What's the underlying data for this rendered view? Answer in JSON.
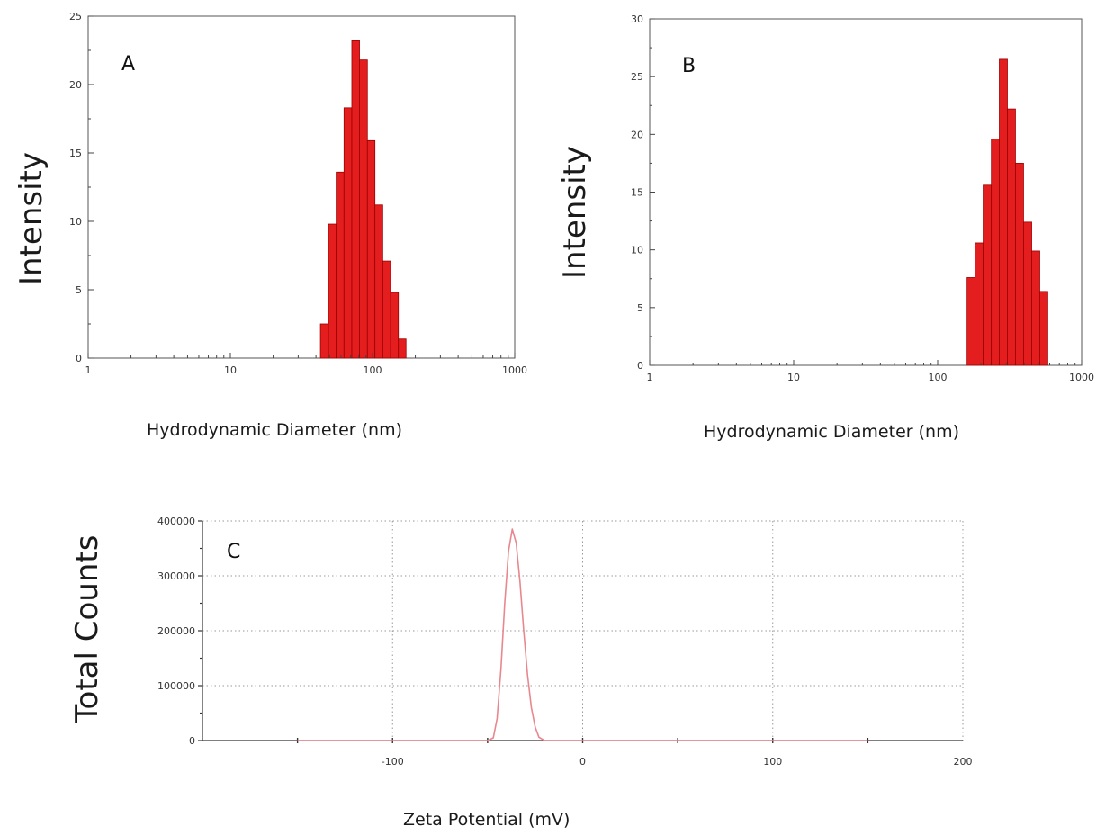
{
  "colors": {
    "bar_fill": "#e41e1e",
    "bar_edge": "#9b0000",
    "zeta_line": "#e8888e",
    "grid": "#9a9a9a"
  },
  "chart_data": [
    {
      "id": "A",
      "type": "bar",
      "panel_label": "A",
      "xlabel": "Hydrodynamic Diameter  (nm)",
      "ylabel": "Intensity",
      "xscale": "log",
      "xlim": [
        1,
        1000
      ],
      "ylim": [
        0,
        25
      ],
      "xticks": [
        "1",
        "10",
        "100",
        "1000"
      ],
      "yticks": [
        "0",
        "5",
        "10",
        "15",
        "20",
        "25"
      ],
      "grid": false,
      "bins_nm": [
        [
          43.0,
          49.0
        ],
        [
          49.0,
          55.5
        ],
        [
          55.5,
          63.0
        ],
        [
          63.0,
          71.5
        ],
        [
          71.5,
          81.0
        ],
        [
          81.0,
          92.0
        ],
        [
          92.0,
          104.0
        ],
        [
          104.0,
          118.0
        ],
        [
          118.0,
          134.0
        ],
        [
          134.0,
          152.0
        ],
        [
          152.0,
          172.0
        ]
      ],
      "values": [
        2.5,
        9.8,
        13.6,
        18.3,
        23.2,
        21.8,
        15.9,
        11.2,
        7.1,
        4.8,
        1.4
      ]
    },
    {
      "id": "B",
      "type": "bar",
      "panel_label": "B",
      "xlabel": "Hydrodynamic Diameter  (nm)",
      "ylabel": "Intensity",
      "xscale": "log",
      "xlim": [
        1,
        1000
      ],
      "ylim": [
        0,
        30
      ],
      "xticks": [
        "1",
        "10",
        "100",
        "1000"
      ],
      "yticks": [
        "0",
        "5",
        "10",
        "15",
        "20",
        "25",
        "30"
      ],
      "grid": false,
      "bins_nm": [
        [
          160,
          182
        ],
        [
          182,
          207
        ],
        [
          207,
          236
        ],
        [
          236,
          268
        ],
        [
          268,
          305
        ],
        [
          305,
          347
        ],
        [
          347,
          395
        ],
        [
          395,
          450
        ],
        [
          450,
          512
        ],
        [
          512,
          582
        ]
      ],
      "values": [
        7.6,
        10.6,
        15.6,
        19.6,
        26.5,
        22.2,
        17.5,
        12.4,
        9.9,
        6.4
      ]
    },
    {
      "id": "C",
      "type": "line",
      "panel_label": "C",
      "xlabel": "Zeta Potential (mV)",
      "ylabel": "Total Counts",
      "xlim": [
        -200,
        200
      ],
      "ylim": [
        0,
        400000
      ],
      "xticks": [
        "-100",
        "0",
        "100",
        "200"
      ],
      "yticks": [
        "0",
        "100000",
        "200000",
        "300000",
        "400000"
      ],
      "grid": true,
      "series": [
        {
          "x": [
            -150,
            -60,
            -50,
            -47,
            -45,
            -43,
            -41,
            -39,
            -37,
            -35,
            -33,
            -31,
            -29,
            -27,
            -25,
            -23,
            -20,
            -10,
            150
          ],
          "y": [
            0,
            0,
            0,
            5000,
            40000,
            130000,
            250000,
            345000,
            385000,
            360000,
            290000,
            200000,
            120000,
            60000,
            25000,
            6000,
            0,
            0,
            0
          ]
        }
      ]
    }
  ]
}
